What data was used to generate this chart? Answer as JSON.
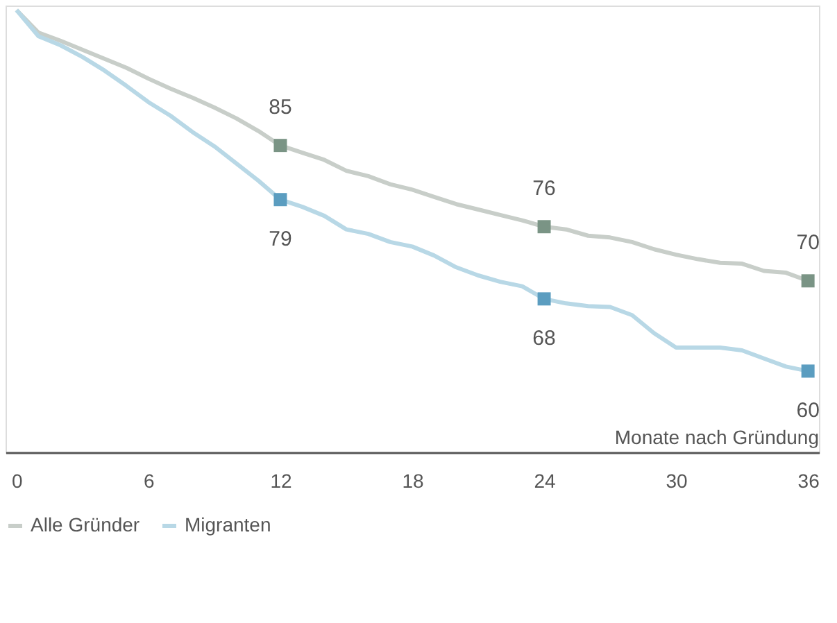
{
  "chart_data": {
    "type": "line",
    "xlabel": "Monate nach Gründung",
    "x": [
      0,
      1,
      2,
      3,
      4,
      5,
      6,
      7,
      8,
      9,
      10,
      11,
      12,
      13,
      14,
      15,
      16,
      17,
      18,
      19,
      20,
      21,
      22,
      23,
      24,
      25,
      26,
      27,
      28,
      29,
      30,
      31,
      32,
      33,
      34,
      35,
      36
    ],
    "series": [
      {
        "name": "Alle Gründer",
        "color": "#c8cec9",
        "values": [
          100,
          97.5,
          96.6,
          95.6,
          94.6,
          93.6,
          92.4,
          91.3,
          90.3,
          89.2,
          88.0,
          86.6,
          85,
          84.2,
          83.4,
          82.2,
          81.6,
          80.7,
          80.1,
          79.3,
          78.5,
          77.9,
          77.3,
          76.7,
          76,
          75.7,
          75.0,
          74.8,
          74.3,
          73.5,
          72.9,
          72.4,
          72.0,
          71.9,
          71.1,
          70.9,
          70
        ]
      },
      {
        "name": "Migranten",
        "color": "#b8d8e6",
        "values": [
          100,
          97.1,
          96.1,
          94.8,
          93.3,
          91.6,
          89.8,
          88.3,
          86.5,
          84.9,
          83.0,
          81.1,
          79,
          78.2,
          77.2,
          75.7,
          75.2,
          74.3,
          73.8,
          72.8,
          71.5,
          70.6,
          69.9,
          69.4,
          68,
          67.5,
          67.2,
          67.1,
          66.2,
          64.2,
          62.6,
          62.6,
          62.6,
          62.3,
          61.4,
          60.5,
          60
        ]
      },
      {
        "type": "scatter",
        "marker": "square",
        "x": [
          12,
          24,
          36
        ],
        "color": "#7a9485",
        "values": [
          85,
          76,
          70
        ],
        "data_labels": true
      },
      {
        "type": "scatter",
        "marker": "square",
        "x": [
          12,
          24,
          36
        ],
        "color": "#5b9dc0",
        "values": [
          79,
          68,
          60
        ],
        "data_labels": true
      }
    ],
    "xlim": [
      -0.5,
      36.5
    ],
    "xticks": [
      0,
      6,
      12,
      18,
      24,
      30,
      36
    ],
    "ylim": [
      51,
      100.5
    ],
    "tick_labels": "x",
    "grid": false,
    "legend": "bottom",
    "line_style": "solid",
    "marker": "none"
  }
}
